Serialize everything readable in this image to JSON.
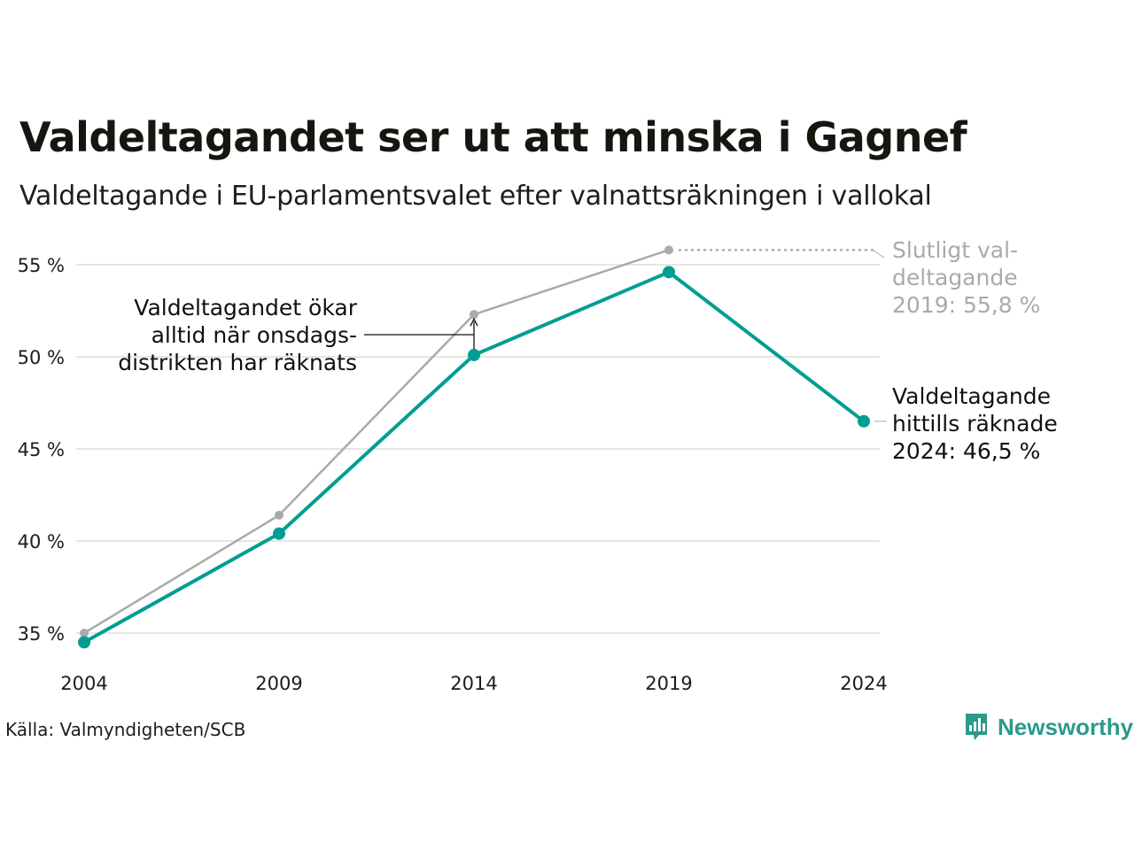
{
  "header": {
    "title": "Valdeltagandet ser ut att minska i Gagnef",
    "subtitle": "Valdeltagande i EU-parlamentsvalet efter valnattsräkningen i vallokal"
  },
  "footer": {
    "source": "Källa: Valmyndigheten/SCB",
    "brand": "Newsworthy"
  },
  "colors": {
    "counted": "#009e92",
    "final": "#aaaaaa",
    "grid": "#e6e6e6",
    "annotation_text": "#111111",
    "annotation_final_text": "#aaaaaa",
    "brand": "#2a9a8c"
  },
  "chart_data": {
    "type": "line",
    "title": "Valdeltagandet ser ut att minska i Gagnef",
    "subtitle": "Valdeltagande i EU-parlamentsvalet efter valnattsräkningen i vallokal",
    "x": [
      "2004",
      "2009",
      "2014",
      "2019",
      "2024"
    ],
    "xlabel": "",
    "ylabel": "",
    "ylim": [
      35,
      55
    ],
    "yticks": [
      35,
      40,
      45,
      50,
      55
    ],
    "ytick_labels": [
      "35 %",
      "40 %",
      "45 %",
      "50 %",
      "55 %"
    ],
    "grid": true,
    "legend": "none",
    "series": [
      {
        "values": [
          34.5,
          40.4,
          50.1,
          54.6,
          46.5
        ]
      },
      {
        "values": [
          35.0,
          41.4,
          52.3,
          55.8,
          null
        ]
      }
    ],
    "annotations": [
      {
        "lines": [
          "Slutligt val-",
          "deltagande",
          "2019: 55,8 %"
        ]
      },
      {
        "lines": [
          "Valdeltagande",
          "hittills räknade",
          "2024: 46,5 %"
        ]
      },
      {
        "lines": [
          "Valdeltagandet ökar",
          "alltid när onsdags-",
          "distrikten har räknats"
        ]
      }
    ]
  }
}
